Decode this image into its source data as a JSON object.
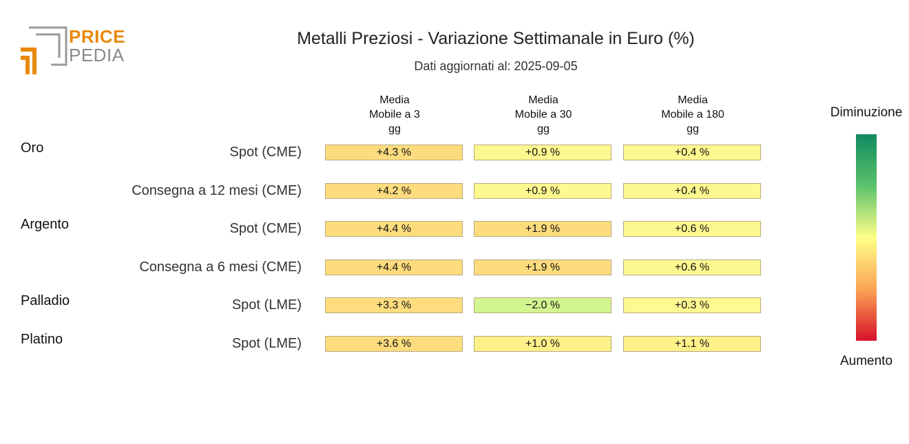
{
  "logo": {
    "line1": "PRICE",
    "line2": "PEDIA"
  },
  "header": {
    "title": "Metalli Preziosi - Variazione Settimanale in Euro (%)",
    "subtitle": "Dati aggiornati al: 2025-09-05"
  },
  "colors": {
    "cell_high": "#fddc7e",
    "cell_mid": "#fff18a",
    "cell_low": "#fef890",
    "cell_negative": "#d2f590",
    "legend_top": "#0f8a5f",
    "legend_mid": "#ffff88",
    "legend_bottom": "#d7112b",
    "logo_orange": "#e8890c"
  },
  "legend": {
    "top_label": "Diminuzione",
    "bottom_label": "Aumento"
  },
  "chart_data": {
    "type": "heatmap",
    "title": "Metalli Preziosi - Variazione Settimanale in Euro (%)",
    "subtitle": "Dati aggiornati al: 2025-09-05",
    "columns": [
      {
        "line1": "Media",
        "line2": "Mobile a 3",
        "line3": "gg"
      },
      {
        "line1": "Media",
        "line2": "Mobile a 30",
        "line3": "gg"
      },
      {
        "line1": "Media",
        "line2": "Mobile a 180",
        "line3": "gg"
      }
    ],
    "groups": [
      {
        "name": "Oro",
        "rows": [
          {
            "label": "Spot (CME)",
            "values": [
              4.3,
              0.9,
              0.4
            ],
            "texts": [
              "+4.3 %",
              "+0.9 %",
              "+0.4 %"
            ]
          },
          {
            "label": "Consegna a 12 mesi (CME)",
            "values": [
              4.2,
              0.9,
              0.4
            ],
            "texts": [
              "+4.2 %",
              "+0.9 %",
              "+0.4 %"
            ]
          }
        ]
      },
      {
        "name": "Argento",
        "rows": [
          {
            "label": "Spot (CME)",
            "values": [
              4.4,
              1.9,
              0.6
            ],
            "texts": [
              "+4.4 %",
              "+1.9 %",
              "+0.6 %"
            ]
          },
          {
            "label": "Consegna a 6 mesi (CME)",
            "values": [
              4.4,
              1.9,
              0.6
            ],
            "texts": [
              "+4.4 %",
              "+1.9 %",
              "+0.6 %"
            ]
          }
        ]
      },
      {
        "name": "Palladio",
        "rows": [
          {
            "label": "Spot (LME)",
            "values": [
              3.3,
              -2.0,
              0.3
            ],
            "texts": [
              "+3.3 %",
              "−2.0 %",
              "+0.3 %"
            ]
          }
        ]
      },
      {
        "name": "Platino",
        "rows": [
          {
            "label": "Spot (LME)",
            "values": [
              3.6,
              1.0,
              1.1
            ],
            "texts": [
              "+3.6 %",
              "+1.0 %",
              "+1.1 %"
            ]
          }
        ]
      }
    ]
  }
}
